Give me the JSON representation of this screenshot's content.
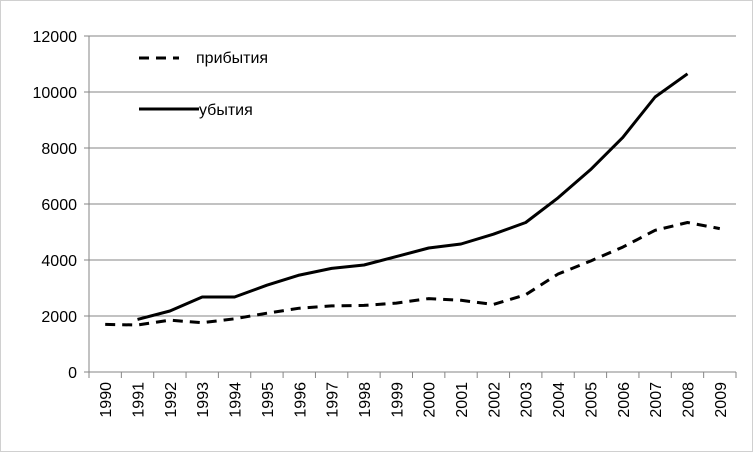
{
  "chart_data": {
    "type": "line",
    "title": "",
    "xlabel": "",
    "ylabel": "",
    "x": [
      "1990",
      "1991",
      "1992",
      "1993",
      "1994",
      "1995",
      "1996",
      "1997",
      "1998",
      "1999",
      "2000",
      "2001",
      "2002",
      "2003",
      "2004",
      "2005",
      "2006",
      "2007",
      "2008",
      "2009"
    ],
    "ylim": [
      0,
      12000
    ],
    "yticks": [
      "0",
      "2000",
      "4000",
      "6000",
      "8000",
      "10000",
      "12000"
    ],
    "grid": "horizontal",
    "legend_position": "top-left",
    "series": [
      {
        "name": "прибытия",
        "style": "dashed",
        "color": "#000000",
        "values": [
          1700,
          1680,
          1850,
          1760,
          1900,
          2100,
          2280,
          2360,
          2380,
          2460,
          2620,
          2560,
          2410,
          2760,
          3500,
          3960,
          4460,
          5060,
          5340,
          5120
        ]
      },
      {
        "name": "убытия",
        "style": "solid",
        "color": "#000000",
        "values": [
          null,
          1880,
          2180,
          2680,
          2680,
          3100,
          3460,
          3700,
          3820,
          4120,
          4430,
          4570,
          4920,
          5340,
          6220,
          7220,
          8380,
          9820,
          10650,
          null
        ]
      }
    ]
  }
}
